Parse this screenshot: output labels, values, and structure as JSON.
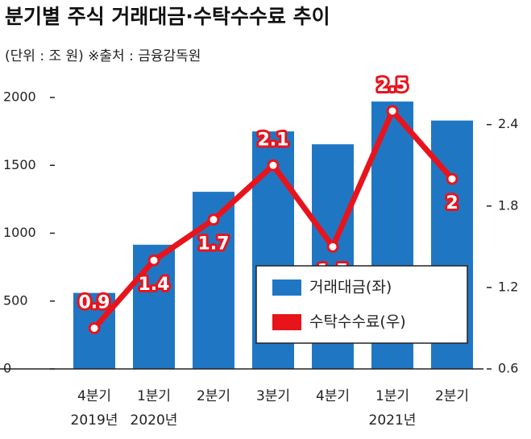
{
  "chart_data": {
    "type": "bar-line",
    "title": "분기별 주식 거래대금·수탁수수료 추이",
    "subtitle": "(단위 : 조 원) ※출처 : 금융감독원",
    "categories": [
      "4분기",
      "1분기",
      "2분기",
      "3분기",
      "4분기",
      "1분기",
      "2분기"
    ],
    "years": [
      "2019년",
      "2020년",
      null,
      null,
      null,
      "2021년",
      null
    ],
    "series": [
      {
        "name": "거래대금(좌)",
        "color": "#1f77c4",
        "values": [
          560,
          915,
          1305,
          1750,
          1655,
          1970,
          1830
        ]
      },
      {
        "name": "수탁수수료(우)",
        "color": "#e8141c",
        "axis": "y2",
        "values": [
          0.9,
          1.4,
          1.7,
          2.1,
          1.5,
          2.5,
          2.0
        ]
      }
    ],
    "ylim": [
      0,
      2000
    ],
    "yticks": [
      0,
      500,
      1000,
      1500,
      2000
    ],
    "y2lim": [
      0.6,
      2.6
    ],
    "y2ticks": [
      0.6,
      1.2,
      1.8,
      2.4
    ],
    "legend": "lower right"
  }
}
